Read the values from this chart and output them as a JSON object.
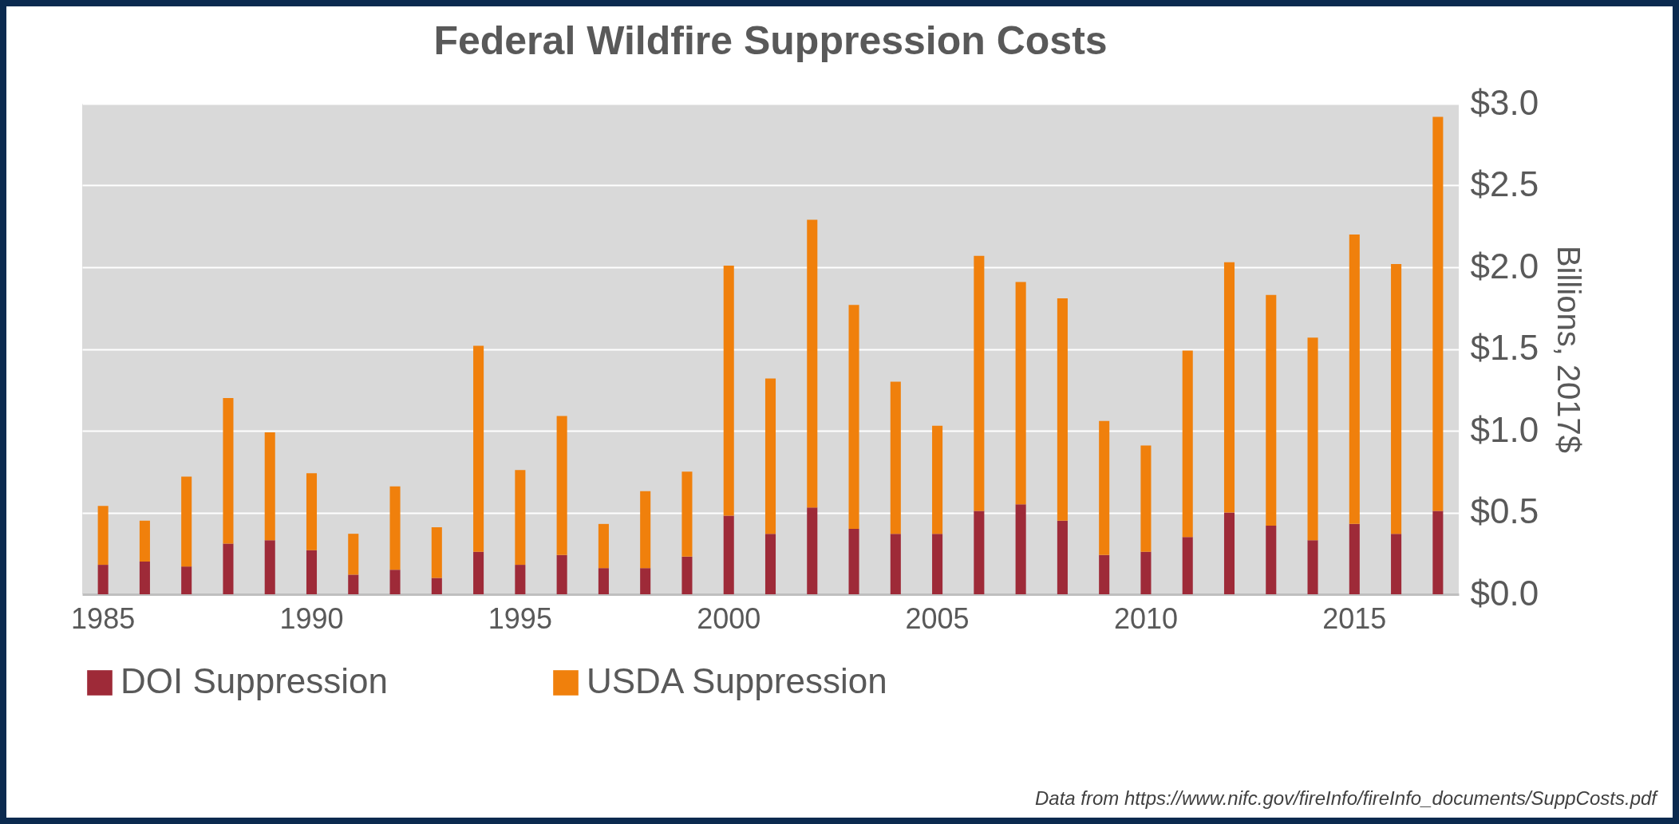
{
  "chart_data": {
    "type": "bar",
    "stacked": true,
    "title": "Federal Wildfire Suppression Costs",
    "ylabel": "Billions, 2017$",
    "categories": [
      "1985",
      null,
      null,
      null,
      null,
      "1990",
      null,
      null,
      null,
      null,
      "1995",
      null,
      null,
      null,
      null,
      "2000",
      null,
      null,
      null,
      null,
      "2005",
      null,
      null,
      null,
      null,
      "2010",
      null,
      null,
      null,
      null,
      "2015",
      null,
      null
    ],
    "series": [
      {
        "name": "DOI Suppression",
        "color": "#9e2a38",
        "values": [
          0.18,
          0.2,
          0.17,
          0.31,
          0.33,
          0.27,
          0.12,
          0.15,
          0.1,
          0.26,
          0.18,
          0.24,
          0.16,
          0.16,
          0.23,
          0.48,
          0.37,
          0.53,
          0.4,
          0.37,
          0.37,
          0.51,
          0.55,
          0.45,
          0.24,
          0.26,
          0.35,
          0.5,
          0.42,
          0.33,
          0.43,
          0.37,
          0.51
        ]
      },
      {
        "name": "USDA Suppression",
        "color": "#f0800c",
        "values": [
          0.36,
          0.25,
          0.55,
          0.89,
          0.66,
          0.47,
          0.25,
          0.51,
          0.31,
          1.26,
          0.58,
          0.85,
          0.27,
          0.47,
          0.52,
          1.53,
          0.95,
          1.76,
          1.37,
          0.93,
          0.66,
          1.56,
          1.36,
          1.36,
          0.82,
          0.65,
          1.14,
          1.53,
          1.41,
          1.24,
          1.77,
          1.65,
          2.41
        ]
      }
    ],
    "ylim": [
      0,
      3
    ],
    "yticks": [
      {
        "value": 0,
        "label": "$0.0"
      },
      {
        "value": 0.5,
        "label": "$0.5"
      },
      {
        "value": 1,
        "label": "$1.0"
      },
      {
        "value": 1.5,
        "label": "$1.5"
      },
      {
        "value": 2,
        "label": "$2.0"
      },
      {
        "value": 2.5,
        "label": "$2.5"
      },
      {
        "value": 3,
        "label": "$3.0"
      }
    ],
    "grid": "y",
    "legend": "bottom",
    "annotations": [
      "Data from https://www.nifc.gov/fireInfo/fireInfo_documents/SuppCosts.pdf"
    ]
  }
}
